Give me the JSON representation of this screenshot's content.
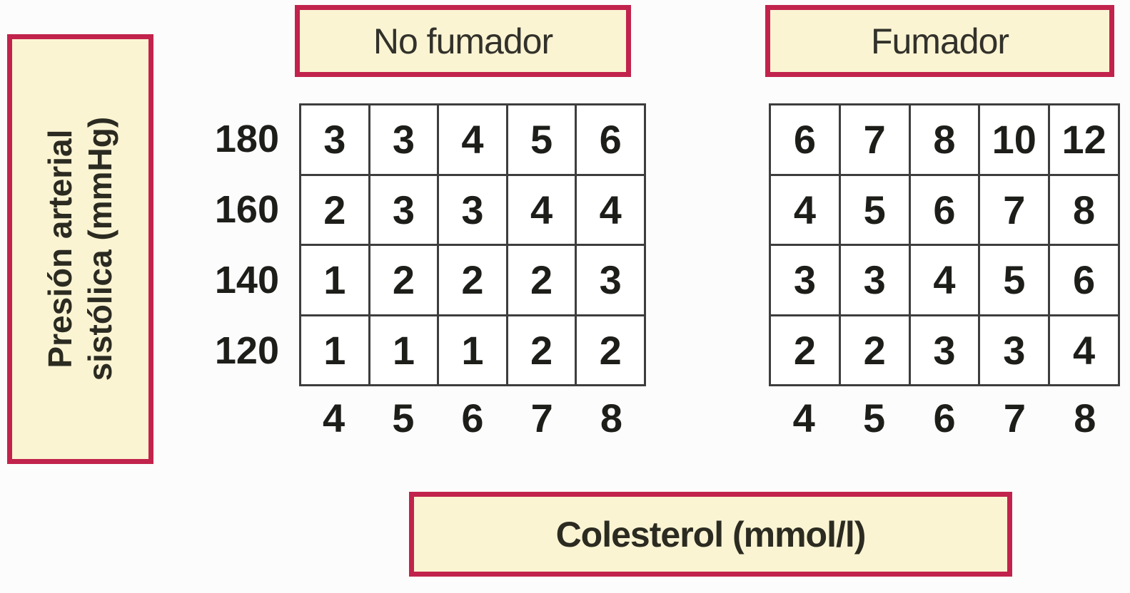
{
  "y_axis": {
    "label_line1": "Presión arterial",
    "label_line2": "sistólica (mmHg)",
    "ticks": [
      "180",
      "160",
      "140",
      "120"
    ]
  },
  "x_axis": {
    "label": "Colesterol (mmol/l)",
    "ticks": [
      "4",
      "5",
      "6",
      "7",
      "8"
    ]
  },
  "panels": [
    {
      "title": "No fumador",
      "rows": [
        [
          "3",
          "3",
          "4",
          "5",
          "6"
        ],
        [
          "2",
          "3",
          "3",
          "4",
          "4"
        ],
        [
          "1",
          "2",
          "2",
          "2",
          "3"
        ],
        [
          "1",
          "1",
          "1",
          "2",
          "2"
        ]
      ]
    },
    {
      "title": "Fumador",
      "rows": [
        [
          "6",
          "7",
          "8",
          "10",
          "12"
        ],
        [
          "4",
          "5",
          "6",
          "7",
          "8"
        ],
        [
          "3",
          "3",
          "4",
          "5",
          "6"
        ],
        [
          "2",
          "2",
          "3",
          "3",
          "4"
        ]
      ]
    }
  ],
  "colors": {
    "box_fill": "#faf4d3",
    "box_border": "#c1234c",
    "grid_line": "#3d3d3d",
    "text_dark": "#2c2b21",
    "number_text": "#1d1d1a",
    "page_background": "#fcfcfc"
  },
  "chart_data": [
    {
      "type": "heatmap",
      "title": "No fumador",
      "xlabel": "Colesterol (mmol/l)",
      "ylabel": "Presión arterial sistólica (mmHg)",
      "x": [
        4,
        5,
        6,
        7,
        8
      ],
      "y": [
        180,
        160,
        140,
        120
      ],
      "values": [
        [
          3,
          3,
          4,
          5,
          6
        ],
        [
          2,
          3,
          3,
          4,
          4
        ],
        [
          1,
          2,
          2,
          2,
          3
        ],
        [
          1,
          1,
          1,
          2,
          2
        ]
      ],
      "grid": true,
      "legend_position": "none"
    },
    {
      "type": "heatmap",
      "title": "Fumador",
      "xlabel": "Colesterol (mmol/l)",
      "ylabel": "Presión arterial sistólica (mmHg)",
      "x": [
        4,
        5,
        6,
        7,
        8
      ],
      "y": [
        180,
        160,
        140,
        120
      ],
      "values": [
        [
          6,
          7,
          8,
          10,
          12
        ],
        [
          4,
          5,
          6,
          7,
          8
        ],
        [
          3,
          3,
          4,
          5,
          6
        ],
        [
          2,
          2,
          3,
          3,
          4
        ]
      ],
      "grid": true,
      "legend_position": "none"
    }
  ]
}
